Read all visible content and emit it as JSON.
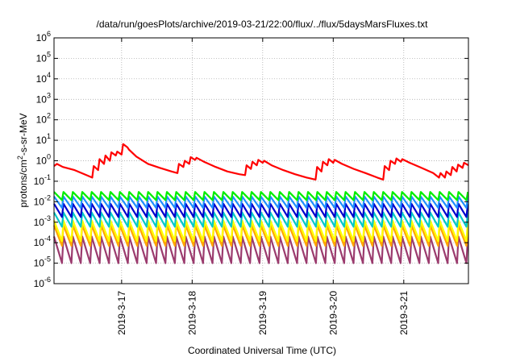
{
  "chart_data": {
    "type": "line",
    "title": "/data/run/goesPlots/archive/2019-03-21/22:00/flux/../flux/5daysMarsFluxes.txt",
    "xlabel": "Coordinated Universal Time (UTC)",
    "ylabel": {
      "base": "protons/cm",
      "sup": "2",
      "rest": "-s-sr-MeV"
    },
    "y_scale": "log",
    "ylim": [
      1e-06,
      1000000.0
    ],
    "y_ticks": [
      {
        "base": "10",
        "exp": "-6",
        "value": 1e-06
      },
      {
        "base": "10",
        "exp": "-5",
        "value": 1e-05
      },
      {
        "base": "10",
        "exp": "-4",
        "value": 0.0001
      },
      {
        "base": "10",
        "exp": "-3",
        "value": 0.001
      },
      {
        "base": "10",
        "exp": "-2",
        "value": 0.01
      },
      {
        "base": "10",
        "exp": "-1",
        "value": 0.1
      },
      {
        "base": "10",
        "exp": "0",
        "value": 1
      },
      {
        "base": "10",
        "exp": "1",
        "value": 10
      },
      {
        "base": "10",
        "exp": "2",
        "value": 100
      },
      {
        "base": "10",
        "exp": "3",
        "value": 1000
      },
      {
        "base": "10",
        "exp": "4",
        "value": 10000
      },
      {
        "base": "10",
        "exp": "5",
        "value": 100000
      },
      {
        "base": "10",
        "exp": "6",
        "value": 1000000
      }
    ],
    "x_range": [
      "2019-03-16 01:00",
      "2019-03-21 22:00"
    ],
    "x_ticks": [
      {
        "label": "2019-3-17",
        "value": "2019-03-17"
      },
      {
        "label": "2019-3-18",
        "value": "2019-03-18"
      },
      {
        "label": "2019-3-19",
        "value": "2019-03-19"
      },
      {
        "label": "2019-3-20",
        "value": "2019-03-20"
      },
      {
        "label": "2019-3-21",
        "value": "2019-03-21"
      }
    ],
    "grid": true,
    "legend": "none",
    "series": [
      {
        "color": "#ff0000",
        "x": [
          "2019-03-16 01:00",
          "2019-03-16 02:00",
          "2019-03-16 04:00",
          "2019-03-16 08:00",
          "2019-03-16 12:00",
          "2019-03-16 14:00",
          "2019-03-16 14:30",
          "2019-03-16 16:00",
          "2019-03-16 16:30",
          "2019-03-16 18:00",
          "2019-03-16 18:30",
          "2019-03-16 20:00",
          "2019-03-16 20:30",
          "2019-03-16 22:00",
          "2019-03-16 22:30",
          "2019-03-17 00:00",
          "2019-03-17 00:30",
          "2019-03-17 02:00",
          "2019-03-17 02:30",
          "2019-03-17 05:00",
          "2019-03-17 09:00",
          "2019-03-17 13:00",
          "2019-03-17 17:00",
          "2019-03-17 19:00",
          "2019-03-17 19:30",
          "2019-03-17 21:00",
          "2019-03-17 21:30",
          "2019-03-17 23:00",
          "2019-03-17 23:30",
          "2019-03-18 01:00",
          "2019-03-18 01:30",
          "2019-03-18 04:00",
          "2019-03-18 08:00",
          "2019-03-18 12:00",
          "2019-03-18 16:00",
          "2019-03-18 18:00",
          "2019-03-18 18:30",
          "2019-03-18 20:00",
          "2019-03-18 20:30",
          "2019-03-18 22:00",
          "2019-03-18 22:30",
          "2019-03-19 00:00",
          "2019-03-19 00:30",
          "2019-03-19 03:00",
          "2019-03-19 07:00",
          "2019-03-19 11:00",
          "2019-03-19 15:00",
          "2019-03-19 18:00",
          "2019-03-19 18:30",
          "2019-03-19 20:00",
          "2019-03-19 20:30",
          "2019-03-19 22:00",
          "2019-03-19 22:30",
          "2019-03-20 00:00",
          "2019-03-20 00:30",
          "2019-03-20 03:00",
          "2019-03-20 07:00",
          "2019-03-20 11:00",
          "2019-03-20 15:00",
          "2019-03-20 17:00",
          "2019-03-20 17:30",
          "2019-03-20 19:00",
          "2019-03-20 19:30",
          "2019-03-20 21:00",
          "2019-03-20 21:30",
          "2019-03-20 23:00",
          "2019-03-20 23:30",
          "2019-03-21 02:00",
          "2019-03-21 06:00",
          "2019-03-21 10:00",
          "2019-03-21 12:00",
          "2019-03-21 12:30",
          "2019-03-21 14:00",
          "2019-03-21 14:30",
          "2019-03-21 16:00",
          "2019-03-21 16:30",
          "2019-03-21 18:00",
          "2019-03-21 18:30",
          "2019-03-21 20:00",
          "2019-03-21 20:30",
          "2019-03-21 22:00"
        ],
        "values": [
          0.55,
          0.7,
          0.5,
          0.35,
          0.2,
          0.15,
          0.55,
          0.35,
          1.2,
          0.7,
          1.8,
          1.0,
          2.6,
          1.8,
          2.8,
          2.0,
          6.5,
          4.5,
          3.5,
          1.6,
          0.7,
          0.45,
          0.3,
          0.25,
          0.7,
          0.5,
          1.0,
          0.7,
          1.5,
          1.1,
          1.4,
          0.9,
          0.5,
          0.3,
          0.22,
          0.2,
          0.6,
          0.4,
          0.9,
          0.6,
          1.1,
          0.8,
          1.0,
          0.6,
          0.35,
          0.22,
          0.15,
          0.12,
          0.5,
          0.3,
          0.9,
          0.6,
          1.2,
          0.8,
          1.1,
          0.7,
          0.4,
          0.25,
          0.15,
          0.12,
          0.55,
          0.35,
          1.0,
          0.7,
          1.3,
          0.9,
          1.2,
          0.8,
          0.45,
          0.25,
          0.15,
          0.25,
          0.15,
          0.3,
          0.2,
          0.5,
          0.3,
          0.65,
          0.45,
          0.8,
          0.6
        ]
      },
      {
        "color": "#00ee00",
        "low": 0.012,
        "high": 0.03,
        "period_hours": 3.2
      },
      {
        "color": "#1f8fff",
        "low": 0.005,
        "high": 0.018,
        "period_hours": 3.2
      },
      {
        "color": "#0000cd",
        "low": 0.0018,
        "high": 0.008,
        "period_hours": 3.2
      },
      {
        "color": "#00c8c8",
        "low": 0.0006,
        "high": 0.003,
        "period_hours": 3.2
      },
      {
        "color": "#ffff00",
        "low": 0.00012,
        "high": 0.0012,
        "period_hours": 3.2
      },
      {
        "color": "#ffa500",
        "low": 7e-05,
        "high": 0.0007,
        "period_hours": 3.2
      },
      {
        "color": "#9b3b6e",
        "low": 1e-05,
        "high": 0.0002,
        "period_hours": 3.2
      }
    ]
  }
}
